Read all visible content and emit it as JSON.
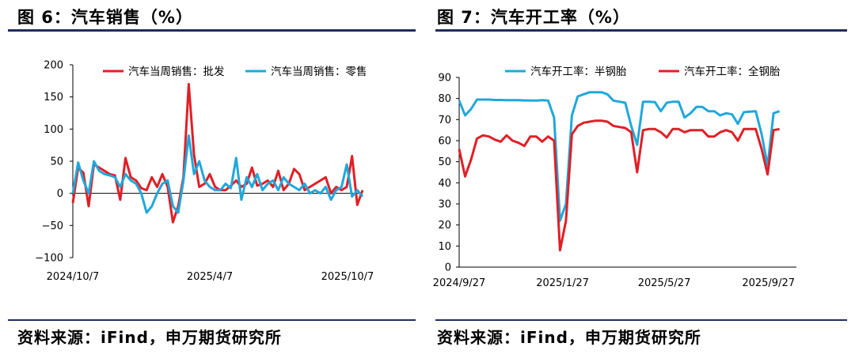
{
  "charts": [
    {
      "figure_title": "图 6：汽车销售（%）",
      "source": "资料来源：iFind，申万期货研究所"
    },
    {
      "figure_title": "图 7：汽车开工率（%）",
      "source": "资料来源：iFind，申万期货研究所"
    }
  ],
  "colors": {
    "red": "#e01f26",
    "blue": "#1fa8db",
    "rule": "#1f2d5c"
  },
  "chart_data": [
    {
      "type": "line",
      "title": "图 6：汽车销售（%）",
      "ylim": [
        -100,
        200
      ],
      "yticks": [
        -100,
        -50,
        0,
        50,
        100,
        150,
        200
      ],
      "xtick_labels": [
        "2024/10/7",
        "2025/4/7",
        "2025/10/7"
      ],
      "x_range": [
        "2024/10/7",
        "2025/10/27"
      ],
      "grid": false,
      "legend": "top",
      "series": [
        {
          "name": "汽车当周销售：批发",
          "color": "#e01f26",
          "points": [
            [
              "2024/10/7",
              -15
            ],
            [
              "2024/10/14",
              40
            ],
            [
              "2024/10/21",
              32
            ],
            [
              "2024/10/28",
              -20
            ],
            [
              "2024/11/4",
              45
            ],
            [
              "2024/11/11",
              40
            ],
            [
              "2024/11/18",
              35
            ],
            [
              "2024/11/25",
              30
            ],
            [
              "2024/12/2",
              28
            ],
            [
              "2024/12/9",
              -10
            ],
            [
              "2024/12/16",
              55
            ],
            [
              "2024/12/23",
              25
            ],
            [
              "2024/12/30",
              20
            ],
            [
              "2025/1/6",
              8
            ],
            [
              "2025/1/13",
              5
            ],
            [
              "2025/1/20",
              25
            ],
            [
              "2025/1/27",
              10
            ],
            [
              "2025/2/3",
              30
            ],
            [
              "2025/2/10",
              10
            ],
            [
              "2025/2/17",
              -45
            ],
            [
              "2025/2/24",
              -20
            ],
            [
              "2025/3/3",
              25
            ],
            [
              "2025/3/10",
              170
            ],
            [
              "2025/3/17",
              60
            ],
            [
              "2025/3/24",
              10
            ],
            [
              "2025/3/31",
              15
            ],
            [
              "2025/4/7",
              30
            ],
            [
              "2025/4/14",
              10
            ],
            [
              "2025/4/21",
              5
            ],
            [
              "2025/4/28",
              5
            ],
            [
              "2025/5/5",
              12
            ],
            [
              "2025/5/12",
              20
            ],
            [
              "2025/5/19",
              10
            ],
            [
              "2025/5/26",
              15
            ],
            [
              "2025/6/2",
              40
            ],
            [
              "2025/6/9",
              12
            ],
            [
              "2025/6/16",
              15
            ],
            [
              "2025/6/23",
              20
            ],
            [
              "2025/6/30",
              10
            ],
            [
              "2025/7/7",
              35
            ],
            [
              "2025/7/14",
              5
            ],
            [
              "2025/7/21",
              15
            ],
            [
              "2025/7/28",
              38
            ],
            [
              "2025/8/4",
              30
            ],
            [
              "2025/8/11",
              5
            ],
            [
              "2025/8/18",
              10
            ],
            [
              "2025/8/25",
              15
            ],
            [
              "2025/9/1",
              20
            ],
            [
              "2025/9/8",
              25
            ],
            [
              "2025/9/15",
              0
            ],
            [
              "2025/9/22",
              10
            ],
            [
              "2025/9/29",
              5
            ],
            [
              "2025/10/6",
              10
            ],
            [
              "2025/10/13",
              58
            ],
            [
              "2025/10/20",
              -18
            ],
            [
              "2025/10/27",
              5
            ]
          ]
        },
        {
          "name": "汽车当周销售：零售",
          "color": "#1fa8db",
          "points": [
            [
              "2024/10/7",
              0
            ],
            [
              "2024/10/14",
              48
            ],
            [
              "2024/10/21",
              20
            ],
            [
              "2024/10/28",
              0
            ],
            [
              "2024/11/4",
              50
            ],
            [
              "2024/11/11",
              35
            ],
            [
              "2024/11/18",
              30
            ],
            [
              "2024/11/25",
              28
            ],
            [
              "2024/12/2",
              25
            ],
            [
              "2024/12/9",
              10
            ],
            [
              "2024/12/16",
              30
            ],
            [
              "2024/12/23",
              20
            ],
            [
              "2024/12/30",
              15
            ],
            [
              "2025/1/6",
              0
            ],
            [
              "2025/1/13",
              -30
            ],
            [
              "2025/1/20",
              -20
            ],
            [
              "2025/1/27",
              0
            ],
            [
              "2025/2/3",
              15
            ],
            [
              "2025/2/10",
              20
            ],
            [
              "2025/2/17",
              -20
            ],
            [
              "2025/2/24",
              -30
            ],
            [
              "2025/3/3",
              20
            ],
            [
              "2025/3/10",
              90
            ],
            [
              "2025/3/17",
              30
            ],
            [
              "2025/3/24",
              50
            ],
            [
              "2025/3/31",
              20
            ],
            [
              "2025/4/7",
              10
            ],
            [
              "2025/4/14",
              5
            ],
            [
              "2025/4/21",
              5
            ],
            [
              "2025/4/28",
              15
            ],
            [
              "2025/5/5",
              8
            ],
            [
              "2025/5/12",
              55
            ],
            [
              "2025/5/19",
              -10
            ],
            [
              "2025/5/26",
              25
            ],
            [
              "2025/6/2",
              10
            ],
            [
              "2025/6/9",
              30
            ],
            [
              "2025/6/16",
              5
            ],
            [
              "2025/6/23",
              15
            ],
            [
              "2025/6/30",
              20
            ],
            [
              "2025/7/7",
              5
            ],
            [
              "2025/7/14",
              25
            ],
            [
              "2025/7/21",
              15
            ],
            [
              "2025/7/28",
              10
            ],
            [
              "2025/8/4",
              5
            ],
            [
              "2025/8/11",
              15
            ],
            [
              "2025/8/18",
              0
            ],
            [
              "2025/8/25",
              5
            ],
            [
              "2025/9/1",
              0
            ],
            [
              "2025/9/8",
              10
            ],
            [
              "2025/9/15",
              -10
            ],
            [
              "2025/9/22",
              5
            ],
            [
              "2025/9/29",
              10
            ],
            [
              "2025/10/6",
              45
            ],
            [
              "2025/10/13",
              -5
            ],
            [
              "2025/10/20",
              5
            ],
            [
              "2025/10/27",
              -5
            ]
          ]
        }
      ]
    },
    {
      "type": "line",
      "title": "图 7：汽车开工率（%）",
      "ylim": [
        0,
        90
      ],
      "yticks": [
        0,
        10,
        20,
        30,
        40,
        50,
        60,
        70,
        80,
        90
      ],
      "xtick_labels": [
        "2024/9/27",
        "2025/1/27",
        "2025/5/27",
        "2025/9/27"
      ],
      "x_range": [
        "2024/9/27",
        "2025/10/30"
      ],
      "grid": false,
      "legend": "top",
      "series": [
        {
          "name": "汽车开工率：半钢胎",
          "color": "#1fa8db",
          "points": [
            [
              "2024/9/27",
              79
            ],
            [
              "2024/10/4",
              72
            ],
            [
              "2024/10/11",
              75
            ],
            [
              "2024/10/18",
              79.5
            ],
            [
              "2024/10/25",
              79.5
            ],
            [
              "2024/11/1",
              79.5
            ],
            [
              "2024/11/8",
              79.3
            ],
            [
              "2024/11/15",
              79.3
            ],
            [
              "2024/11/22",
              79.2
            ],
            [
              "2024/11/29",
              79.2
            ],
            [
              "2024/12/6",
              79.2
            ],
            [
              "2024/12/13",
              79.1
            ],
            [
              "2024/12/20",
              79.1
            ],
            [
              "2024/12/27",
              79.0
            ],
            [
              "2025/1/3",
              79.2
            ],
            [
              "2025/1/10",
              79.0
            ],
            [
              "2025/1/17",
              71
            ],
            [
              "2025/1/24",
              22
            ],
            [
              "2025/1/31",
              30
            ],
            [
              "2025/2/7",
              72
            ],
            [
              "2025/2/14",
              81
            ],
            [
              "2025/2/21",
              82
            ],
            [
              "2025/2/28",
              83
            ],
            [
              "2025/3/7",
              83
            ],
            [
              "2025/3/14",
              83
            ],
            [
              "2025/3/21",
              82
            ],
            [
              "2025/3/28",
              79
            ],
            [
              "2025/4/4",
              78.5
            ],
            [
              "2025/4/11",
              78
            ],
            [
              "2025/4/18",
              67
            ],
            [
              "2025/4/25",
              58
            ],
            [
              "2025/5/2",
              78.5
            ],
            [
              "2025/5/9",
              78.5
            ],
            [
              "2025/5/16",
              78.3
            ],
            [
              "2025/5/23",
              74
            ],
            [
              "2025/5/30",
              78
            ],
            [
              "2025/6/6",
              78.5
            ],
            [
              "2025/6/13",
              78.5
            ],
            [
              "2025/6/20",
              71
            ],
            [
              "2025/6/27",
              73
            ],
            [
              "2025/7/4",
              76
            ],
            [
              "2025/7/11",
              76
            ],
            [
              "2025/7/18",
              74
            ],
            [
              "2025/7/25",
              74
            ],
            [
              "2025/8/1",
              72
            ],
            [
              "2025/8/8",
              73
            ],
            [
              "2025/8/15",
              72.5
            ],
            [
              "2025/8/22",
              68
            ],
            [
              "2025/8/29",
              73.5
            ],
            [
              "2025/9/5",
              73.8
            ],
            [
              "2025/9/12",
              74
            ],
            [
              "2025/9/19",
              63
            ],
            [
              "2025/9/26",
              48
            ],
            [
              "2025/10/3",
              73
            ],
            [
              "2025/10/10",
              74
            ]
          ]
        },
        {
          "name": "汽车开工率：全钢胎",
          "color": "#e01f26",
          "points": [
            [
              "2024/9/27",
              56
            ],
            [
              "2024/10/4",
              43
            ],
            [
              "2024/10/11",
              51
            ],
            [
              "2024/10/18",
              61
            ],
            [
              "2024/10/25",
              62.5
            ],
            [
              "2024/11/1",
              62
            ],
            [
              "2024/11/8",
              60.5
            ],
            [
              "2024/11/15",
              59.5
            ],
            [
              "2024/11/22",
              62.5
            ],
            [
              "2024/11/29",
              60
            ],
            [
              "2024/12/6",
              59
            ],
            [
              "2024/12/13",
              57.5
            ],
            [
              "2024/12/20",
              62
            ],
            [
              "2024/12/27",
              62
            ],
            [
              "2025/1/3",
              59.5
            ],
            [
              "2025/1/10",
              62
            ],
            [
              "2025/1/17",
              60
            ],
            [
              "2025/1/24",
              8
            ],
            [
              "2025/1/31",
              22
            ],
            [
              "2025/2/7",
              63
            ],
            [
              "2025/2/14",
              67
            ],
            [
              "2025/2/21",
              68.5
            ],
            [
              "2025/2/28",
              69
            ],
            [
              "2025/3/7",
              69.5
            ],
            [
              "2025/3/14",
              69.5
            ],
            [
              "2025/3/21",
              69
            ],
            [
              "2025/3/28",
              67
            ],
            [
              "2025/4/4",
              66.5
            ],
            [
              "2025/4/11",
              66
            ],
            [
              "2025/4/18",
              64
            ],
            [
              "2025/4/25",
              45
            ],
            [
              "2025/5/2",
              65
            ],
            [
              "2025/5/9",
              65.5
            ],
            [
              "2025/5/16",
              65.5
            ],
            [
              "2025/5/23",
              64
            ],
            [
              "2025/5/30",
              61.5
            ],
            [
              "2025/6/6",
              65.5
            ],
            [
              "2025/6/13",
              65.5
            ],
            [
              "2025/6/20",
              64
            ],
            [
              "2025/6/27",
              65
            ],
            [
              "2025/7/4",
              65
            ],
            [
              "2025/7/11",
              65
            ],
            [
              "2025/7/18",
              62
            ],
            [
              "2025/7/25",
              62
            ],
            [
              "2025/8/1",
              64
            ],
            [
              "2025/8/8",
              65
            ],
            [
              "2025/8/15",
              64
            ],
            [
              "2025/8/22",
              60
            ],
            [
              "2025/8/29",
              65.5
            ],
            [
              "2025/9/5",
              65.5
            ],
            [
              "2025/9/12",
              65.5
            ],
            [
              "2025/9/19",
              56
            ],
            [
              "2025/9/26",
              44
            ],
            [
              "2025/10/3",
              65
            ],
            [
              "2025/10/10",
              65.5
            ]
          ]
        }
      ]
    }
  ]
}
